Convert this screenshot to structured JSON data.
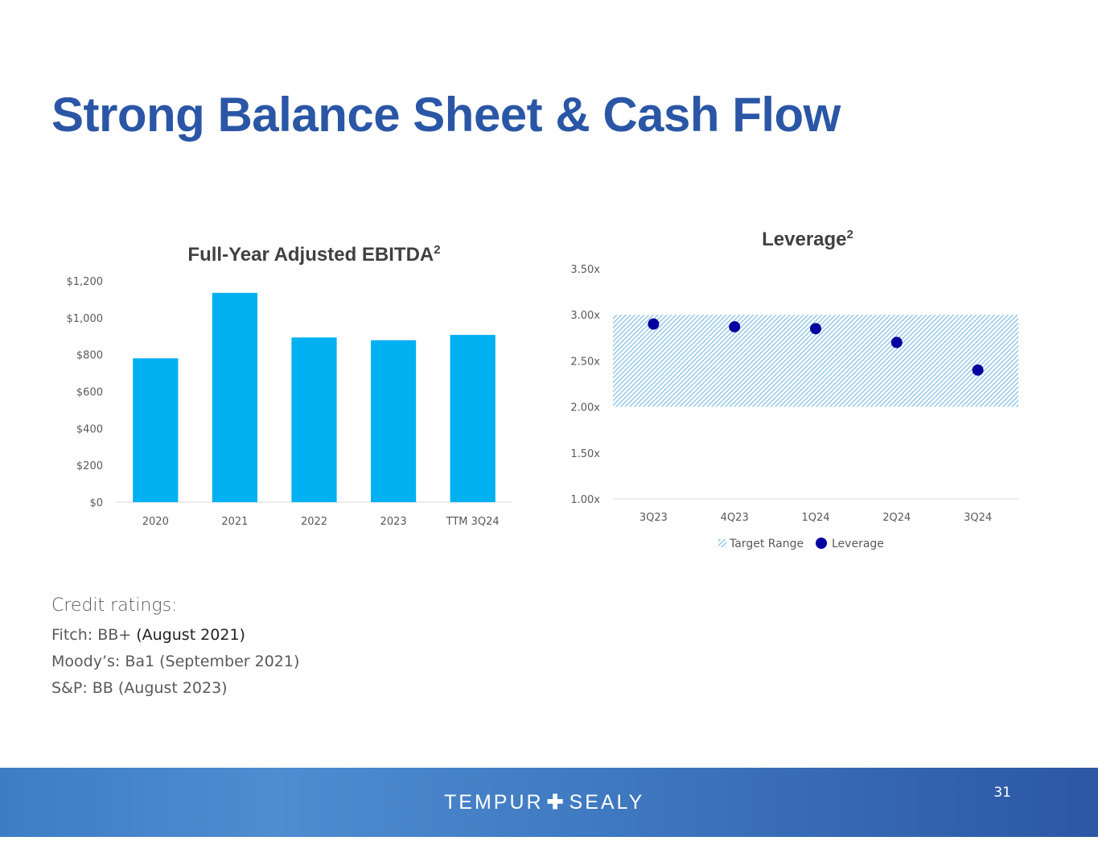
{
  "page": {
    "title": "Strong Balance Sheet & Cash Flow",
    "page_number": "31",
    "logo": {
      "left": "TEMPUR",
      "plus": "✚",
      "right": "SEALY"
    }
  },
  "credit": {
    "heading": "Credit ratings:",
    "lines": [
      {
        "label": "Fitch: BB+ ",
        "detail": "(August 2021)"
      },
      {
        "label": "Moody’s: Ba1 (September 2021)",
        "detail": ""
      },
      {
        "label": "S&P: BB (August 2023)",
        "detail": ""
      }
    ]
  },
  "colors": {
    "title": "#2a56a5",
    "bar": "#00b0f0",
    "dot": "#0000a0",
    "hatch": "#7fbde6"
  },
  "chart_data": [
    {
      "type": "bar",
      "title": "Full-Year Adjusted EBITDA",
      "title_sup": "2",
      "categories": [
        "2020",
        "2021",
        "2022",
        "2023",
        "TTM 3Q24"
      ],
      "values": [
        780,
        1135,
        893,
        878,
        907
      ],
      "ylim": [
        0,
        1200
      ],
      "yticks": [
        0,
        200,
        400,
        600,
        800,
        1000,
        1200
      ],
      "ytick_labels": [
        "$0",
        "$200",
        "$400",
        "$600",
        "$800",
        "$1,000",
        "$1,200"
      ],
      "xlabel": "",
      "ylabel": "",
      "grid": false,
      "legend": "none"
    },
    {
      "type": "scatter",
      "title": "Leverage",
      "title_sup": "2",
      "categories": [
        "3Q23",
        "4Q23",
        "1Q24",
        "2Q24",
        "3Q24"
      ],
      "series": [
        {
          "name": "Target Range",
          "kind": "band",
          "low": 2.0,
          "high": 3.0
        },
        {
          "name": "Leverage",
          "kind": "points",
          "values": [
            2.9,
            2.87,
            2.85,
            2.7,
            2.4
          ]
        }
      ],
      "ylim": [
        1.0,
        3.5
      ],
      "yticks": [
        1.0,
        1.5,
        2.0,
        2.5,
        3.0,
        3.5
      ],
      "ytick_labels": [
        "1.00x",
        "1.50x",
        "2.00x",
        "2.50x",
        "3.00x",
        "3.50x"
      ],
      "xlabel": "",
      "ylabel": "",
      "grid": false,
      "legend": "bottom"
    }
  ]
}
